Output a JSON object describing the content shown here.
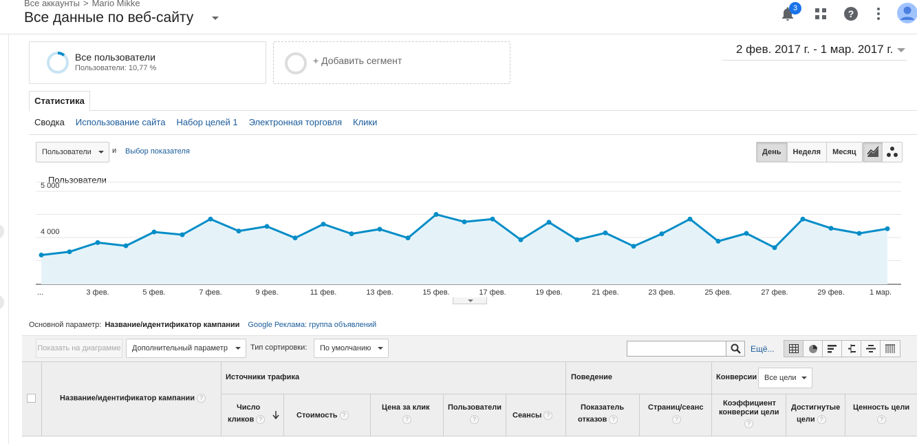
{
  "header": {
    "breadcrumb_root": "Все аккаунты",
    "breadcrumb_sep": ">",
    "breadcrumb_account": "Mario Mikke",
    "view_title": "Все данные по веб-сайту",
    "notifications_count": "3",
    "icons": [
      "bell-icon",
      "apps-grid-icon",
      "help-icon",
      "more-vert-icon",
      "avatar"
    ]
  },
  "segments": {
    "active_name": "Все пользователи",
    "active_sub": "Пользователи: 10,77 %",
    "add_label": "+ Добавить сегмент"
  },
  "date_range": "2 фев. 2017 г. - 1 мар. 2017 г.",
  "tabs": {
    "stats": "Статистика"
  },
  "subnav": [
    "Сводка",
    "Использование сайта",
    "Набор целей 1",
    "Электронная торговля",
    "Клики"
  ],
  "chart_controls": {
    "metric": "Пользователи",
    "and": "и",
    "pick_metric": "Выбор показателя",
    "periods": [
      "День",
      "Неделя",
      "Месяц"
    ],
    "active_period": "День"
  },
  "chart_data": {
    "type": "area",
    "series": [
      {
        "name": "Пользователи",
        "color": "#058dc7",
        "values": [
          3620,
          3690,
          3890,
          3820,
          4120,
          4060,
          4400,
          4140,
          4240,
          3990,
          4290,
          4080,
          4180,
          3990,
          4500,
          4340,
          4400,
          3950,
          4330,
          3950,
          4100,
          3810,
          4080,
          4400,
          3920,
          4090,
          3780,
          4400,
          4200,
          4090,
          4190
        ]
      }
    ],
    "x_tick_labels": [
      "...",
      "3 фев.",
      "5 фев.",
      "7 фев.",
      "9 фев.",
      "11 фев.",
      "13 фев.",
      "15 фев.",
      "17 фев.",
      "19 фев.",
      "21 фев.",
      "23 фев.",
      "25 фев.",
      "27 фев.",
      "29 фев.",
      "1 мар."
    ],
    "y_ticks": [
      {
        "value": 5000,
        "label": "5 000"
      },
      {
        "value": 4000,
        "label": "4 000"
      }
    ],
    "ylim": [
      3000,
      5200
    ],
    "grid": true
  },
  "table": {
    "primary_dim_label": "Основной параметр:",
    "primary_dim_active": "Название/идентификатор кампании",
    "primary_dim_alt": "Google Реклама: группа объявлений",
    "plot_button": "Показать на диаграмме",
    "secondary_dim": "Дополнительный параметр",
    "sort_label": "Тип сортировки:",
    "sort_value": "По умолчанию",
    "search_placeholder": "",
    "more": "Ещё...",
    "groups": {
      "traffic": "Источники трафика",
      "behavior": "Поведение",
      "conversions": "Конверсии"
    },
    "goal_select": "Все цели",
    "columns": {
      "campaign": "Название/идентификатор кампании",
      "clicks_1": "Число",
      "clicks_2": "кликов",
      "cost": "Стоимость",
      "cpc": "Цена за клик",
      "users": "Пользователи",
      "sessions": "Сеансы",
      "bounce_1": "Показатель",
      "bounce_2": "отказов",
      "pages": "Страниц/сеанс",
      "conv_rate_1": "Коэффициент",
      "conv_rate_2": "конверсии цели",
      "goals_1": "Достигнутые",
      "goals_2": "цели",
      "goal_value": "Ценность цели"
    },
    "help": "?"
  }
}
